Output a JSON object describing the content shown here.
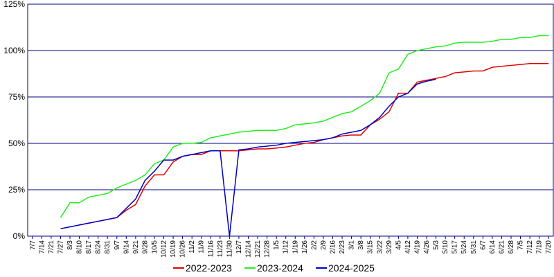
{
  "chart_data": {
    "type": "line",
    "categories": [
      "7/7",
      "7/14",
      "7/21",
      "7/27",
      "8/3",
      "8/10",
      "8/17",
      "8/24",
      "8/31",
      "9/7",
      "9/14",
      "9/21",
      "9/28",
      "10/5",
      "10/12",
      "10/19",
      "10/26",
      "11/2",
      "11/9",
      "11/16",
      "11/23",
      "11/30",
      "12/7",
      "12/14",
      "12/21",
      "12/28",
      "1/5",
      "1/12",
      "1/19",
      "1/26",
      "2/2",
      "2/9",
      "2/16",
      "2/23",
      "3/1",
      "3/8",
      "3/15",
      "3/22",
      "3/29",
      "4/5",
      "4/12",
      "4/19",
      "4/26",
      "5/3",
      "5/10",
      "5/17",
      "5/24",
      "5/31",
      "6/7",
      "6/14",
      "6/21",
      "6/28",
      "7/5",
      "7/12",
      "7/19",
      "7/20"
    ],
    "series": [
      {
        "name": "2022-2023",
        "color": "#e00000",
        "values": [
          null,
          null,
          null,
          null,
          null,
          6,
          7,
          8,
          9,
          10,
          14,
          17,
          27,
          33,
          33,
          40,
          43,
          44,
          44,
          46,
          46,
          46,
          46,
          46.5,
          47,
          47,
          47.5,
          48,
          49,
          50,
          50.5,
          52,
          53,
          54,
          54.5,
          54.5,
          60,
          63,
          67,
          77,
          77,
          83,
          84,
          85,
          86,
          88,
          88.5,
          89,
          89,
          91,
          91.5,
          92,
          92.5,
          93,
          93,
          93
        ]
      },
      {
        "name": "2023-2024",
        "color": "#22ee22",
        "values": [
          null,
          null,
          null,
          10,
          18,
          18,
          21,
          22,
          23,
          26,
          28,
          30,
          33,
          39,
          41,
          48,
          50,
          50,
          50.5,
          53,
          54,
          55,
          56,
          56.5,
          57,
          57,
          57,
          58,
          60,
          60.5,
          61,
          62,
          64,
          66,
          67,
          70,
          73,
          77,
          88,
          90,
          98,
          100,
          101,
          102,
          102.5,
          104,
          104.5,
          104.5,
          104.5,
          105,
          106,
          106,
          107,
          107,
          108,
          108
        ]
      },
      {
        "name": "2024-2025",
        "color": "#0000c0",
        "values": [
          null,
          null,
          null,
          4,
          5,
          6,
          7,
          8,
          9,
          10,
          15,
          20,
          30,
          35,
          41,
          41,
          43,
          44,
          45,
          46,
          46,
          0,
          46.5,
          47,
          48,
          48.5,
          49,
          50,
          50.5,
          51,
          51.5,
          52,
          53,
          55,
          56,
          57,
          60,
          64,
          70,
          75,
          77,
          82,
          83.5,
          84.5,
          null,
          null,
          null,
          null,
          null,
          null,
          null,
          null,
          null,
          null,
          null,
          null
        ]
      }
    ],
    "ylim": [
      0,
      125
    ],
    "yticks": [
      {
        "value": 0,
        "label": "0%"
      },
      {
        "value": 25,
        "label": "25%"
      },
      {
        "value": 50,
        "label": "50%"
      },
      {
        "value": 75,
        "label": "75%"
      },
      {
        "value": 100,
        "label": "100%"
      },
      {
        "value": 125,
        "label": "125%"
      }
    ],
    "grid": true,
    "legend": "bottom"
  }
}
